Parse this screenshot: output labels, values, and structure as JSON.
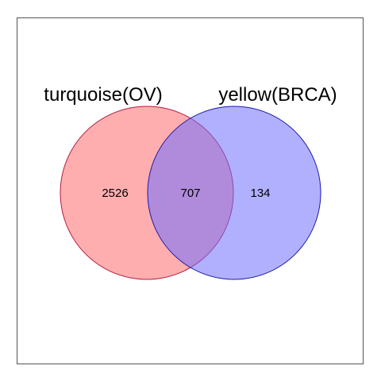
{
  "venn": {
    "sets": [
      {
        "label": "turquoise(OV)",
        "fill": "#ff6b6f",
        "fill_opacity": 0.55,
        "stroke": "#b21a3a"
      },
      {
        "label": "yellow(BRCA)",
        "fill": "#6f6fff",
        "fill_opacity": 0.55,
        "stroke": "#1a1aa8"
      }
    ],
    "counts": {
      "only_left": "2526",
      "intersection": "707",
      "only_right": "134"
    },
    "frame_color": "#555555"
  }
}
